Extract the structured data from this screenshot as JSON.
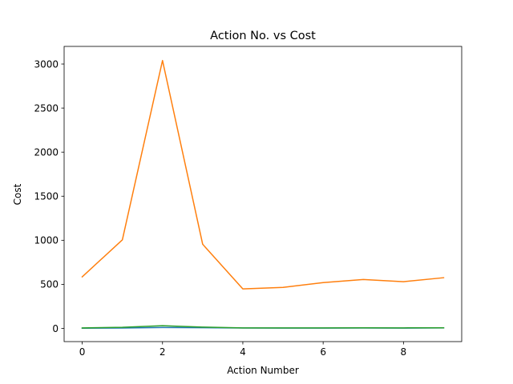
{
  "chart_data": {
    "type": "line",
    "title": "Action No. vs Cost",
    "xlabel": "Action Number",
    "ylabel": "Cost",
    "x": [
      0,
      1,
      2,
      3,
      4,
      5,
      6,
      7,
      8,
      9
    ],
    "xlim": [
      -0.45,
      9.45
    ],
    "ylim": [
      -150,
      3200
    ],
    "xticks": [
      0,
      2,
      4,
      6,
      8
    ],
    "yticks": [
      0,
      500,
      1000,
      1500,
      2000,
      2500,
      3000
    ],
    "grid": false,
    "series": [
      {
        "color": "#1f77b4",
        "values": [
          2,
          4,
          10,
          8,
          4,
          3,
          3,
          4,
          3,
          5
        ]
      },
      {
        "color": "#ff7f0e",
        "values": [
          585,
          1005,
          3040,
          955,
          448,
          465,
          520,
          555,
          530,
          575
        ]
      },
      {
        "color": "#2ca02c",
        "values": [
          5,
          12,
          30,
          15,
          6,
          6,
          6,
          7,
          6,
          7
        ]
      }
    ]
  }
}
